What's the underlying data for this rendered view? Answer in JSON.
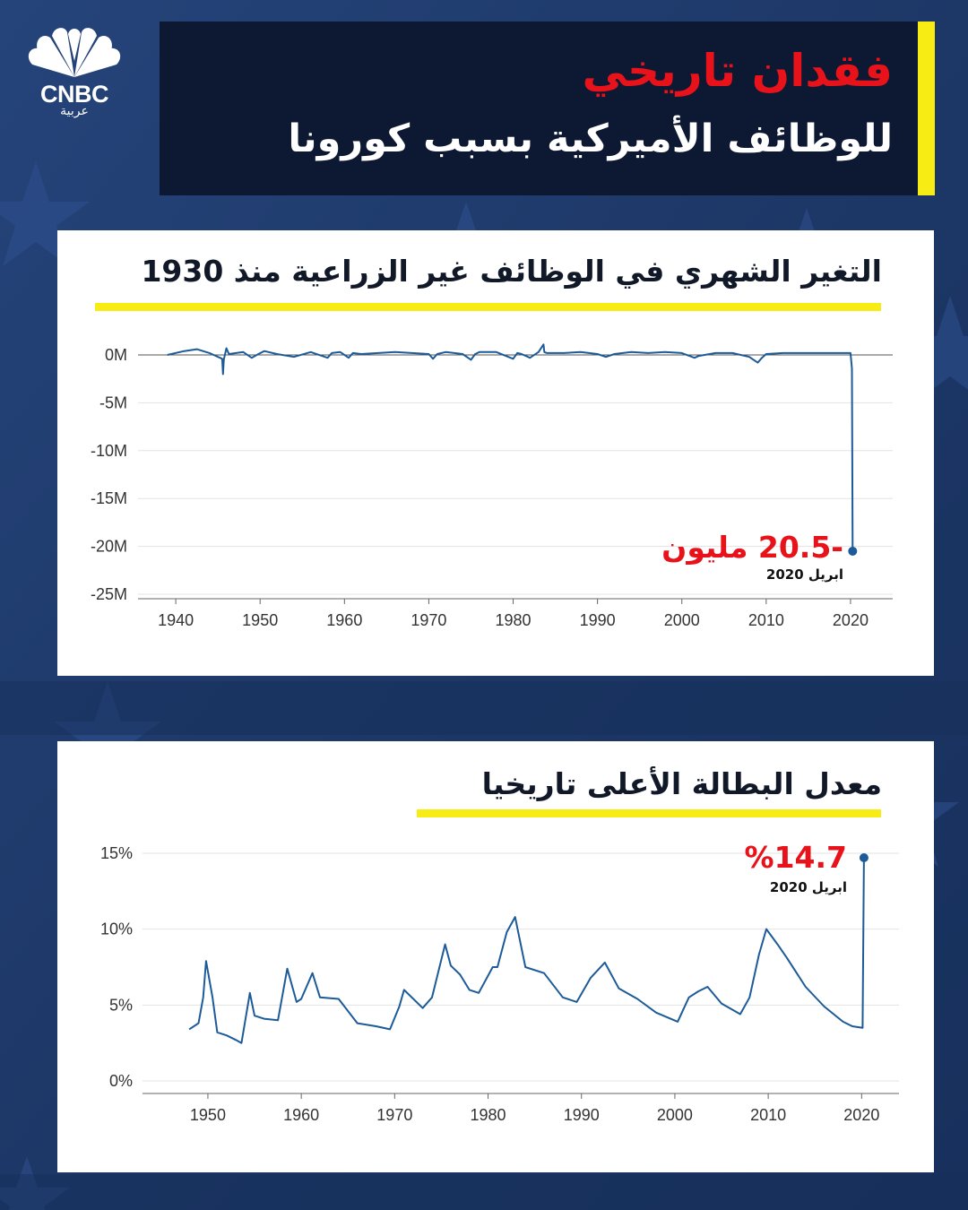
{
  "brand": {
    "name": "CNBC",
    "arabic": "عربية"
  },
  "header": {
    "title_line1": "فقدان تاريخي",
    "title_line2": "للوظائف الأميركية بسبب كورونا"
  },
  "colors": {
    "background": "#1f3a6c",
    "title_box": "#0d1832",
    "highlight_yellow": "#f7ec13",
    "accent_red": "#e8121b",
    "line_blue": "#1c5b98"
  },
  "icons": {
    "logo": "peacock-logo-icon"
  },
  "charts": [
    {
      "title": "التغير الشهري في الوظائف غير الزراعية منذ 1930",
      "annotation_value": "-20.5 مليون",
      "annotation_date": "ابريل 2020"
    },
    {
      "title": "معدل البطالة الأعلى تاريخيا",
      "annotation_value": "%14.7",
      "annotation_date": "ابريل 2020"
    }
  ],
  "chart_data": [
    {
      "type": "line",
      "title": "التغير الشهري في الوظائف غير الزراعية منذ 1930",
      "xlabel": "",
      "ylabel": "",
      "xlim": [
        1930,
        2025
      ],
      "ylim": [
        -25,
        1.5
      ],
      "x_ticks": [
        1940,
        1950,
        1960,
        1970,
        1980,
        1990,
        2000,
        2010,
        2020
      ],
      "y_ticks": [
        0,
        -5,
        -10,
        -15,
        -20,
        -25
      ],
      "y_tick_labels": [
        "0M",
        "-5M",
        "-10M",
        "-15M",
        "-20M",
        "-25M"
      ],
      "grid": "horizontal",
      "units": "millions of jobs",
      "series": [
        {
          "x": [
            1939,
            1941,
            1942.5,
            1944,
            1945.5,
            1945.6,
            1945.7,
            1946,
            1946.3,
            1948,
            1949,
            1949.8,
            1950.5,
            1952,
            1954,
            1956,
            1958,
            1958.5,
            1959.5,
            1960.5,
            1961,
            1962,
            1964,
            1966,
            1968,
            1970,
            1970.5,
            1971,
            1972,
            1974,
            1975,
            1975.5,
            1976,
            1978,
            1980,
            1980.5,
            1981,
            1982,
            1983,
            1983.6,
            1983.7,
            1984,
            1986,
            1988,
            1990,
            1991,
            1992,
            1994,
            1996,
            1998,
            2000,
            2001.5,
            2002,
            2004,
            2006,
            2008,
            2008.5,
            2009,
            2009.5,
            2010,
            2012,
            2014,
            2016,
            2018,
            2019,
            2020.0,
            2020.17,
            2020.25
          ],
          "values": [
            0.0,
            0.4,
            0.6,
            0.2,
            -0.4,
            -2.0,
            -0.5,
            0.7,
            0.1,
            0.3,
            -0.3,
            0.1,
            0.4,
            0.1,
            -0.2,
            0.3,
            -0.3,
            0.2,
            0.3,
            -0.3,
            0.2,
            0.1,
            0.2,
            0.3,
            0.2,
            0.1,
            -0.4,
            0.1,
            0.3,
            0.1,
            -0.5,
            0.1,
            0.3,
            0.3,
            -0.4,
            0.2,
            0.1,
            -0.3,
            0.3,
            1.1,
            0.3,
            0.2,
            0.2,
            0.3,
            0.1,
            -0.2,
            0.1,
            0.3,
            0.2,
            0.3,
            0.2,
            -0.3,
            -0.1,
            0.2,
            0.2,
            -0.2,
            -0.5,
            -0.8,
            -0.3,
            0.1,
            0.2,
            0.2,
            0.2,
            0.2,
            0.2,
            0.2,
            -1.4,
            -20.5
          ]
        }
      ],
      "annotations": [
        {
          "x": 2020.25,
          "y": -20.5,
          "text": "-20.5 مليون",
          "subtext": "ابريل 2020"
        }
      ]
    },
    {
      "type": "line",
      "title": "معدل البطالة الأعلى تاريخيا",
      "xlabel": "",
      "ylabel": "",
      "xlim": [
        1943,
        2024
      ],
      "ylim": [
        0,
        16
      ],
      "x_ticks": [
        1950,
        1960,
        1970,
        1980,
        1990,
        2000,
        2010,
        2020
      ],
      "y_ticks": [
        0,
        5,
        10,
        15
      ],
      "y_tick_labels": [
        "0%",
        "5%",
        "10%",
        "15%"
      ],
      "grid": "horizontal",
      "units": "percent",
      "series": [
        {
          "x": [
            1948,
            1949,
            1949.5,
            1949.8,
            1950.5,
            1951,
            1952,
            1953,
            1953.6,
            1954.5,
            1955,
            1956,
            1957.5,
            1958.5,
            1959.5,
            1960,
            1961.2,
            1962,
            1964,
            1966,
            1968,
            1969.5,
            1970.5,
            1971,
            1973,
            1974,
            1975.4,
            1976,
            1977,
            1978,
            1979,
            1980.5,
            1981,
            1982,
            1982.9,
            1984,
            1986,
            1988,
            1989.5,
            1991,
            1992.5,
            1994,
            1996,
            1998,
            2000.3,
            2001.5,
            2002.5,
            2003.5,
            2005,
            2007,
            2008,
            2009,
            2009.8,
            2011,
            2012,
            2014,
            2016,
            2018,
            2019,
            2020.1,
            2020.25
          ],
          "values": [
            3.4,
            3.8,
            5.5,
            7.9,
            5.5,
            3.2,
            3.0,
            2.7,
            2.5,
            5.8,
            4.3,
            4.1,
            4.0,
            7.4,
            5.2,
            5.4,
            7.1,
            5.5,
            5.4,
            3.8,
            3.6,
            3.4,
            4.9,
            6.0,
            4.8,
            5.5,
            9.0,
            7.6,
            7.0,
            6.0,
            5.8,
            7.5,
            7.5,
            9.8,
            10.8,
            7.5,
            7.1,
            5.5,
            5.2,
            6.8,
            7.8,
            6.1,
            5.4,
            4.5,
            3.9,
            5.5,
            5.9,
            6.2,
            5.1,
            4.4,
            5.5,
            8.3,
            10.0,
            9.0,
            8.1,
            6.2,
            4.9,
            3.9,
            3.6,
            3.5,
            14.7
          ]
        }
      ],
      "annotations": [
        {
          "x": 2020.25,
          "y": 14.7,
          "text": "%14.7",
          "subtext": "ابريل 2020"
        }
      ]
    }
  ]
}
